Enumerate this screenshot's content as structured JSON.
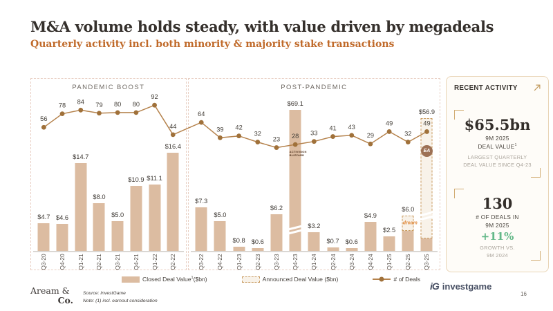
{
  "header": {
    "title": "M&A volume holds steady, with value driven by megadeals",
    "subtitle": "Quarterly activity incl. both minority & majority stake transactions"
  },
  "chart_data": {
    "type": "bar+line",
    "ylabel_bars": "Deal Value ($bn)",
    "ylabel_line": "# of Deals",
    "panels": [
      {
        "title": "PANDEMIC BOOST",
        "quarters": [
          {
            "q": "Q3-20",
            "value": 4.7,
            "value_label": "$4.7",
            "deals": 56
          },
          {
            "q": "Q4-20",
            "value": 4.6,
            "value_label": "$4.6",
            "deals": 78
          },
          {
            "q": "Q1-21",
            "value": 14.7,
            "value_label": "$14.7",
            "deals": 84
          },
          {
            "q": "Q2-21",
            "value": 8.0,
            "value_label": "$8.0",
            "deals": 79
          },
          {
            "q": "Q3-21",
            "value": 5.0,
            "value_label": "$5.0",
            "deals": 80
          },
          {
            "q": "Q4-21",
            "value": 10.9,
            "value_label": "$10.9",
            "deals": 80
          },
          {
            "q": "Q1-22",
            "value": 11.1,
            "value_label": "$11.1",
            "deals": 92
          },
          {
            "q": "Q2-22",
            "value": 16.4,
            "value_label": "$16.4",
            "deals": 44
          }
        ]
      },
      {
        "title": "POST-PANDEMIC",
        "quarters": [
          {
            "q": "Q3-22",
            "value": 7.3,
            "value_label": "$7.3",
            "deals": 64
          },
          {
            "q": "Q4-22",
            "value": 5.0,
            "value_label": "$5.0",
            "deals": 39
          },
          {
            "q": "Q1-23",
            "value": 0.8,
            "value_label": "$0.8",
            "deals": 42
          },
          {
            "q": "Q2-23",
            "value": 0.6,
            "value_label": "$0.6",
            "deals": 32
          },
          {
            "q": "Q3-23",
            "value": 6.2,
            "value_label": "$6.2",
            "deals": 23
          },
          {
            "q": "Q4-23",
            "value": 69.1,
            "value_label": "$69.1",
            "deals": 28,
            "broken": true,
            "capped_height": 205,
            "logo": "activision-blizzard"
          },
          {
            "q": "Q1-24",
            "value": 3.2,
            "value_label": "$3.2",
            "deals": 33
          },
          {
            "q": "Q2-24",
            "value": 0.7,
            "value_label": "$0.7",
            "deals": 41
          },
          {
            "q": "Q3-24",
            "value": 0.6,
            "value_label": "$0.6",
            "deals": 43
          },
          {
            "q": "Q4-24",
            "value": 4.9,
            "value_label": "$4.9",
            "deals": 29
          },
          {
            "q": "Q1-25",
            "value": 2.5,
            "value_label": "$2.5",
            "deals": 49
          },
          {
            "q": "Q2-25",
            "value": 6.0,
            "value_label": "$6.0",
            "deals": 32,
            "announced": {
              "portion": 0.42,
              "logo": "dream-games"
            }
          },
          {
            "q": "Q3-25",
            "value": 56.9,
            "value_label": "$56.9",
            "deals": 49,
            "broken": true,
            "capped_height": 193,
            "announced": {
              "portion": 0.9,
              "logo": "ea"
            }
          }
        ]
      }
    ],
    "legend": [
      {
        "swatch": "closed",
        "pre": "Closed Deal Value",
        "sup": "1",
        "post": "($bn)"
      },
      {
        "swatch": "announced",
        "pre": "Announced Deal Value ($bn)",
        "sup": "",
        "post": ""
      },
      {
        "swatch": "line",
        "pre": "# of Deals",
        "sup": "",
        "post": ""
      }
    ],
    "logos": {
      "activision-blizzard": {
        "lines": [
          "ACTIVISION",
          "BLIZZARD"
        ]
      },
      "dream-games": {
        "text": "dream"
      },
      "ea": {
        "text": "EA"
      }
    }
  },
  "recent": {
    "title": "RECENT ACTIVITY",
    "stat1": {
      "value": "$65.5bn",
      "line1": "9M 2025",
      "line2_pre": "DEAL VALUE",
      "line2_sup": "1",
      "sub": "LARGEST QUARTERLY DEAL VALUE SINCE Q4-23"
    },
    "stat2": {
      "value": "130",
      "line1": "# OF DEALS IN",
      "line2": "9M 2025",
      "highlight": "+11%",
      "sub1": "GROWTH VS.",
      "sub2": "9M 2024"
    }
  },
  "footer": {
    "logo_line1": "Aream &",
    "logo_line2": "Co.",
    "source": "Source: InvestGame",
    "note": "Note: (1) incl. earnout consideration",
    "brand_mark": "iG",
    "brand": "investgame",
    "page": "16"
  },
  "colors": {
    "bar": "#dcbca1",
    "announced_fill": "#f8f2e9",
    "announced_border": "#c89a5e",
    "line": "#b5824c",
    "dot": "#a0713a",
    "tan": "#d2ad74",
    "green": "#63b888",
    "accent": "#c06a2a",
    "brand_navy": "#474f63"
  }
}
